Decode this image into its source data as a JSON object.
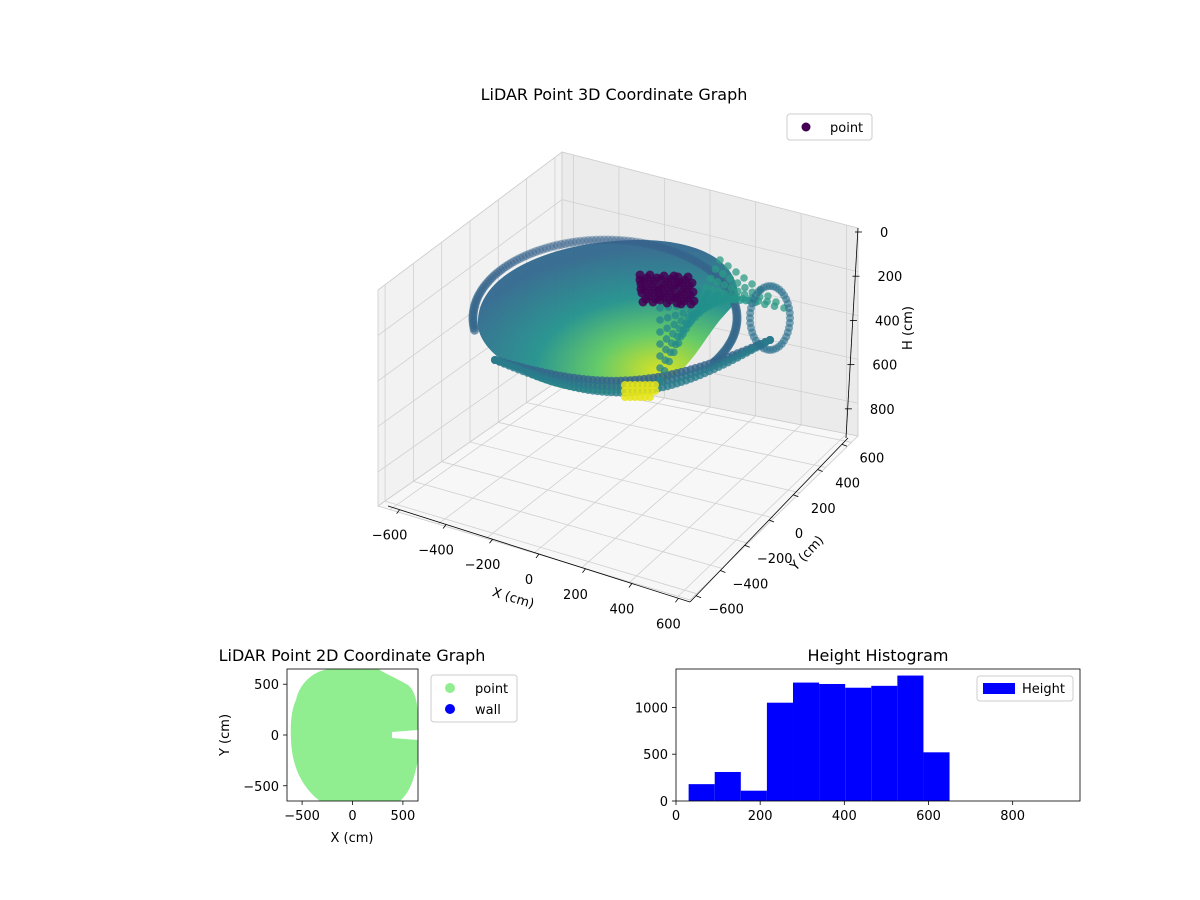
{
  "colors": {
    "point2d": "#90ee90",
    "wall": "#0000ff",
    "hist": "#0000ff",
    "legend_point3d": "#440154"
  },
  "chart_data": [
    {
      "type": "scatter3d",
      "title": "LiDAR Point 3D Coordinate Graph",
      "xlabel": "X (cm)",
      "ylabel": "Y (cm)",
      "zlabel": "H (cm)",
      "xticks": [
        -600,
        -400,
        -200,
        0,
        200,
        400,
        600
      ],
      "yticks": [
        -600,
        -400,
        -200,
        0,
        200,
        400,
        600
      ],
      "zticks": [
        0,
        200,
        400,
        600,
        800
      ],
      "xlim": [
        -650,
        650
      ],
      "ylim": [
        -650,
        650
      ],
      "zlim": [
        0,
        950
      ],
      "zinverted": true,
      "colormap": "viridis",
      "legend": [
        "point"
      ]
    },
    {
      "type": "scatter",
      "title": "LiDAR Point 2D Coordinate Graph",
      "xlabel": "X (cm)",
      "ylabel": "Y (cm)",
      "xticks": [
        -500,
        0,
        500
      ],
      "yticks": [
        -500,
        0,
        500
      ],
      "xlim": [
        -650,
        650
      ],
      "ylim": [
        -650,
        650
      ],
      "series": [
        {
          "name": "point",
          "color": "#90ee90"
        },
        {
          "name": "wall",
          "color": "#0000ff"
        }
      ]
    },
    {
      "type": "bar",
      "title": "Height Histogram",
      "xlabel": "",
      "ylabel": "",
      "xticks": [
        0,
        200,
        400,
        600,
        800
      ],
      "yticks": [
        0,
        500,
        1000
      ],
      "xlim": [
        0,
        960
      ],
      "ylim": [
        0,
        1410
      ],
      "legend": [
        "Height"
      ],
      "bin_edges": [
        30,
        92,
        154,
        216,
        278,
        340,
        402,
        464,
        526,
        588,
        650
      ],
      "values": [
        180,
        310,
        110,
        1050,
        1265,
        1250,
        1210,
        1230,
        1340,
        520
      ]
    }
  ]
}
